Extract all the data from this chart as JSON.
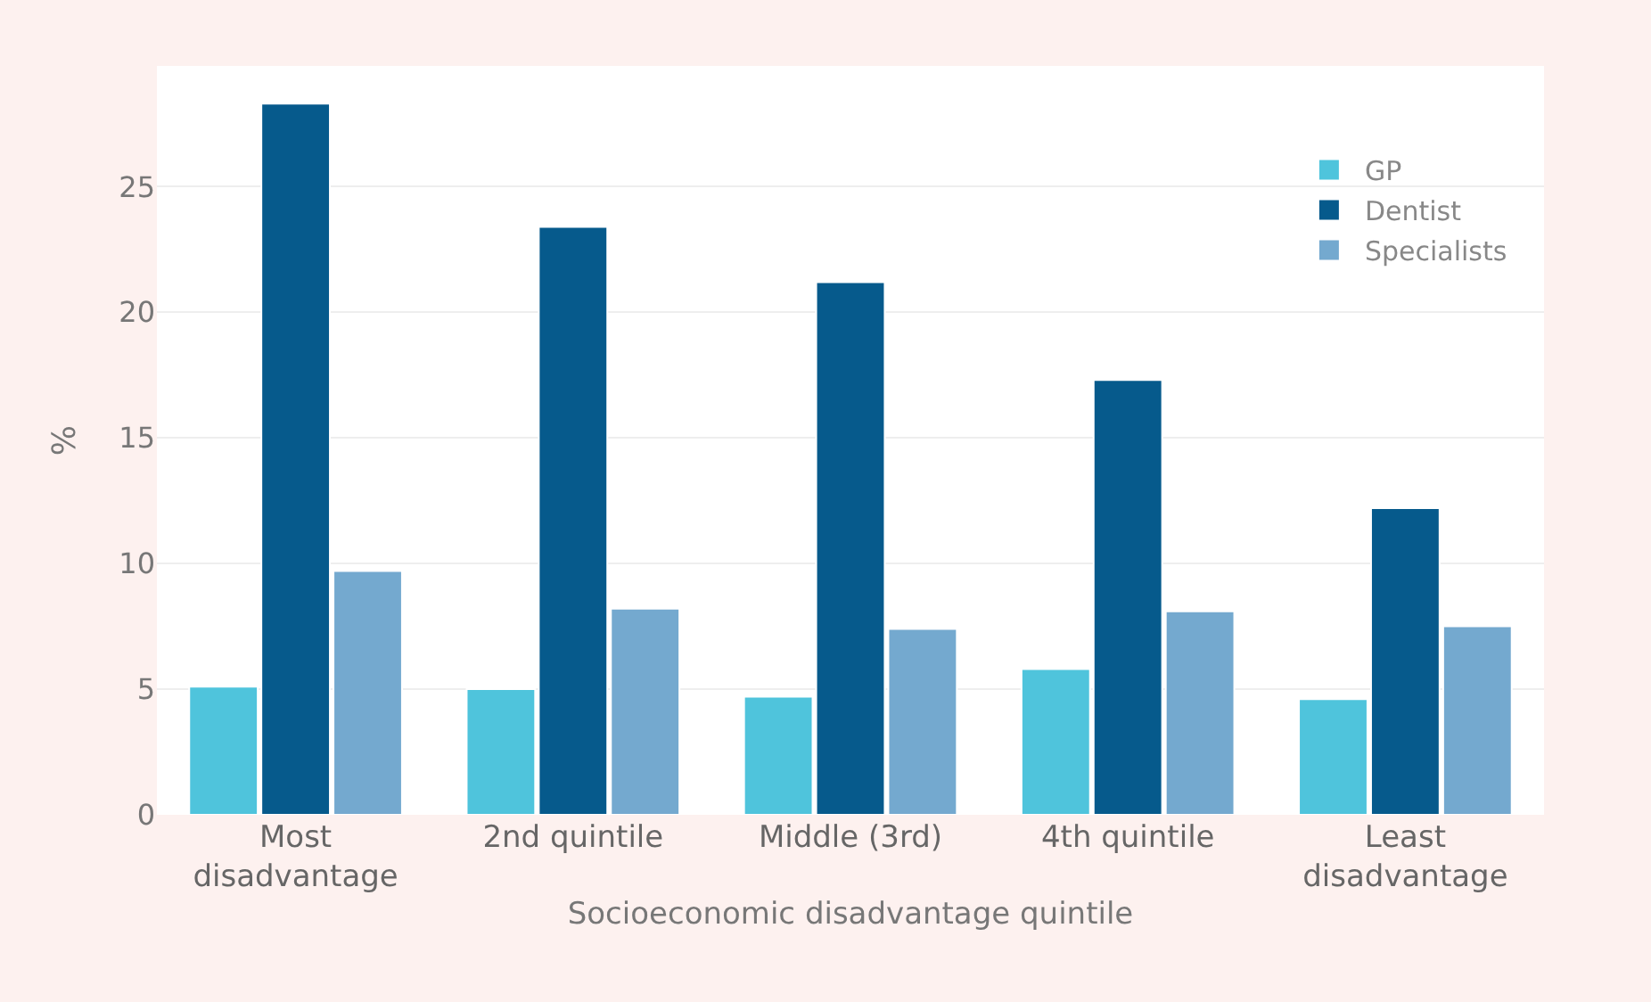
{
  "chart_data": {
    "type": "bar",
    "xlabel": "Socioeconomic disadvantage quintile",
    "ylabel": "%",
    "categories": [
      "Most\ndisadvantage",
      "2nd quintile",
      "Middle (3rd)",
      "4th quintile",
      "Least\ndisadvantage"
    ],
    "series": [
      {
        "name": "GP",
        "color": "#4fc4dc",
        "values": [
          5.1,
          5.0,
          4.7,
          5.8,
          4.6
        ]
      },
      {
        "name": "Dentist",
        "color": "#065a8c",
        "values": [
          28.3,
          23.4,
          21.2,
          17.3,
          12.2
        ]
      },
      {
        "name": "Specialists",
        "color": "#74a9cf",
        "values": [
          9.7,
          8.2,
          7.4,
          8.1,
          7.5
        ]
      }
    ],
    "ylim": [
      0,
      29.8
    ],
    "yticks": [
      0,
      5,
      10,
      15,
      20,
      25
    ],
    "grid": "y",
    "legend": "top right"
  }
}
